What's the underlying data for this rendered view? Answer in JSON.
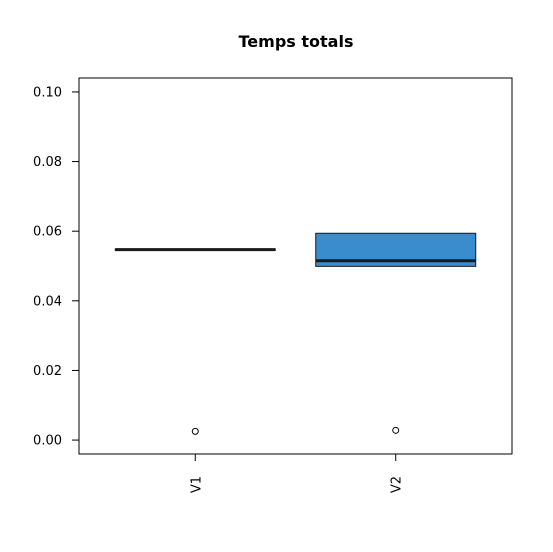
{
  "chart_data": {
    "type": "boxplot",
    "title": "Temps totals",
    "xlabel": "",
    "ylabel": "",
    "categories": [
      "V1",
      "V2"
    ],
    "ylim": [
      -0.004,
      0.104
    ],
    "yticks": [
      "0.00",
      "0.02",
      "0.04",
      "0.06",
      "0.08",
      "0.10"
    ],
    "ytick_values": [
      0.0,
      0.02,
      0.04,
      0.06,
      0.08,
      0.1
    ],
    "grid": false,
    "box_color": "#3a8dcd",
    "series": [
      {
        "category": "V1",
        "q1": 0.0545,
        "median": 0.0547,
        "q3": 0.0549,
        "whisker_low": 0.0545,
        "whisker_high": 0.0549,
        "outliers": [
          0.0025
        ]
      },
      {
        "category": "V2",
        "q1": 0.0499,
        "median": 0.0515,
        "q3": 0.0594,
        "whisker_low": 0.0499,
        "whisker_high": 0.0594,
        "outliers": [
          0.0028
        ]
      }
    ]
  }
}
